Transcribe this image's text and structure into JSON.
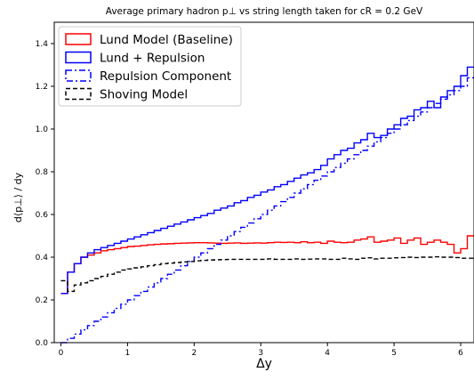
{
  "chart_data": {
    "type": "line",
    "title": "Average primary hadron p⊥ vs string length taken for cR = 0.2 GeV",
    "xlabel": "Δy",
    "ylabel": "d⟨p⊥⟩ / dy",
    "xlim": [
      -0.1,
      6.2
    ],
    "ylim": [
      0.0,
      1.5
    ],
    "x_ticks": [
      0,
      1,
      2,
      3,
      4,
      5,
      6
    ],
    "x_tick_labels": [
      "0",
      "1",
      "2",
      "3",
      "4",
      "5",
      "6"
    ],
    "y_ticks": [
      0.0,
      0.2,
      0.4,
      0.6,
      0.8,
      1.0,
      1.2,
      1.4
    ],
    "y_tick_labels": [
      "0.0",
      "0.2",
      "0.4",
      "0.6",
      "0.8",
      "1.0",
      "1.2",
      "1.4"
    ],
    "grid": false,
    "legend_position": "top-left",
    "x_edges": [
      0.0,
      0.1,
      0.2,
      0.3,
      0.4,
      0.5,
      0.6,
      0.7,
      0.8,
      0.9,
      1.0,
      1.1,
      1.2,
      1.3,
      1.4,
      1.5,
      1.6,
      1.7,
      1.8,
      1.9,
      2.0,
      2.1,
      2.2,
      2.3,
      2.4,
      2.5,
      2.6,
      2.7,
      2.8,
      2.9,
      3.0,
      3.1,
      3.2,
      3.3,
      3.4,
      3.5,
      3.6,
      3.7,
      3.8,
      3.9,
      4.0,
      4.1,
      4.2,
      4.3,
      4.4,
      4.5,
      4.6,
      4.7,
      4.8,
      4.9,
      5.0,
      5.1,
      5.2,
      5.3,
      5.4,
      5.5,
      5.6,
      5.7,
      5.8,
      5.9,
      6.0,
      6.1,
      6.2
    ],
    "series": [
      {
        "name": "Lund Model (Baseline)",
        "color": "#ff0000",
        "style": "solid",
        "values": [
          0.23,
          0.33,
          0.37,
          0.4,
          0.41,
          0.42,
          0.43,
          0.435,
          0.44,
          0.445,
          0.45,
          0.452,
          0.455,
          0.458,
          0.46,
          0.462,
          0.463,
          0.465,
          0.466,
          0.467,
          0.468,
          0.468,
          0.467,
          0.466,
          0.465,
          0.466,
          0.467,
          0.465,
          0.466,
          0.467,
          0.466,
          0.468,
          0.47,
          0.469,
          0.47,
          0.468,
          0.472,
          0.468,
          0.47,
          0.465,
          0.475,
          0.47,
          0.468,
          0.47,
          0.48,
          0.485,
          0.495,
          0.47,
          0.475,
          0.48,
          0.49,
          0.465,
          0.48,
          0.49,
          0.46,
          0.47,
          0.48,
          0.47,
          0.46,
          0.42,
          0.44,
          0.5
        ]
      },
      {
        "name": "Lund + Repulsion",
        "color": "#0000ff",
        "style": "solid",
        "values": [
          0.23,
          0.33,
          0.37,
          0.4,
          0.42,
          0.435,
          0.445,
          0.455,
          0.465,
          0.475,
          0.485,
          0.495,
          0.505,
          0.515,
          0.525,
          0.535,
          0.545,
          0.555,
          0.565,
          0.575,
          0.585,
          0.595,
          0.605,
          0.62,
          0.63,
          0.64,
          0.655,
          0.665,
          0.68,
          0.69,
          0.705,
          0.715,
          0.73,
          0.74,
          0.755,
          0.77,
          0.785,
          0.795,
          0.81,
          0.83,
          0.86,
          0.88,
          0.9,
          0.91,
          0.935,
          0.95,
          0.98,
          0.96,
          0.97,
          1.0,
          1.02,
          1.05,
          1.06,
          1.09,
          1.1,
          1.13,
          1.1,
          1.15,
          1.18,
          1.2,
          1.25,
          1.29
        ]
      },
      {
        "name": "Repulsion Component",
        "color": "#0000ff",
        "style": "dashdot",
        "values": [
          0.0,
          0.02,
          0.04,
          0.06,
          0.08,
          0.1,
          0.12,
          0.14,
          0.16,
          0.18,
          0.2,
          0.22,
          0.24,
          0.26,
          0.28,
          0.3,
          0.32,
          0.34,
          0.36,
          0.38,
          0.4,
          0.42,
          0.44,
          0.46,
          0.48,
          0.5,
          0.52,
          0.54,
          0.56,
          0.58,
          0.6,
          0.62,
          0.64,
          0.66,
          0.68,
          0.7,
          0.72,
          0.74,
          0.76,
          0.78,
          0.8,
          0.82,
          0.84,
          0.86,
          0.88,
          0.9,
          0.92,
          0.94,
          0.96,
          0.98,
          1.0,
          1.02,
          1.04,
          1.06,
          1.08,
          1.1,
          1.12,
          1.14,
          1.16,
          1.18,
          1.2,
          1.24
        ]
      },
      {
        "name": "Shoving Model",
        "color": "#000000",
        "style": "dashed",
        "values": [
          0.29,
          0.24,
          0.27,
          0.28,
          0.29,
          0.3,
          0.31,
          0.32,
          0.33,
          0.34,
          0.345,
          0.35,
          0.355,
          0.36,
          0.365,
          0.37,
          0.372,
          0.375,
          0.378,
          0.38,
          0.383,
          0.385,
          0.387,
          0.388,
          0.389,
          0.39,
          0.39,
          0.39,
          0.39,
          0.39,
          0.39,
          0.392,
          0.39,
          0.39,
          0.39,
          0.392,
          0.39,
          0.391,
          0.392,
          0.392,
          0.39,
          0.39,
          0.395,
          0.392,
          0.39,
          0.395,
          0.397,
          0.392,
          0.395,
          0.395,
          0.397,
          0.398,
          0.4,
          0.398,
          0.4,
          0.4,
          0.402,
          0.4,
          0.4,
          0.398,
          0.395,
          0.395
        ]
      }
    ]
  }
}
